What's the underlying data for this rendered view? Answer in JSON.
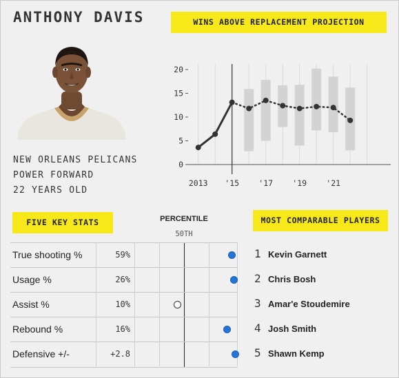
{
  "player": {
    "name": "ANTHONY DAVIS",
    "team": "NEW ORLEANS PELICANS",
    "position": "POWER FORWARD",
    "age": "22 YEARS OLD"
  },
  "war_section": {
    "title": "WINS ABOVE REPLACEMENT PROJECTION"
  },
  "key_stats": {
    "title": "FIVE KEY STATS",
    "percentile_header": "PERCENTILE",
    "median_label": "50TH",
    "rows": [
      {
        "label": "True shooting %",
        "value": "59%",
        "percentile": 95,
        "marker": "filled"
      },
      {
        "label": "Usage %",
        "value": "26%",
        "percentile": 97,
        "marker": "filled"
      },
      {
        "label": "Assist %",
        "value": "10%",
        "percentile": 42,
        "marker": "open"
      },
      {
        "label": "Rebound %",
        "value": "16%",
        "percentile": 90,
        "marker": "filled"
      },
      {
        "label": "Defensive +/-",
        "value": "+2.8",
        "percentile": 98,
        "marker": "filled"
      }
    ]
  },
  "comparable": {
    "title": "MOST COMPARABLE PLAYERS",
    "players": [
      {
        "rank": "1",
        "name": "Kevin Garnett"
      },
      {
        "rank": "2",
        "name": "Chris Bosh"
      },
      {
        "rank": "3",
        "name": "Amar'e Stoudemire"
      },
      {
        "rank": "4",
        "name": "Josh Smith"
      },
      {
        "rank": "5",
        "name": "Shawn Kemp"
      }
    ]
  },
  "colors": {
    "accent": "#f7e81a",
    "dot_blue": "#2574d8",
    "band_gray": "#d3d3d3",
    "line_dark": "#333333"
  },
  "chart_data": {
    "type": "line",
    "title": "WINS ABOVE REPLACEMENT PROJECTION",
    "ylim": [
      0,
      20
    ],
    "yticks": [
      0,
      5,
      10,
      15,
      20
    ],
    "xlim": [
      2012.4,
      2024.4
    ],
    "xticks": [
      {
        "value": 2013,
        "label": "2013"
      },
      {
        "value": 2015,
        "label": "'15"
      },
      {
        "value": 2017,
        "label": "'17"
      },
      {
        "value": 2019,
        "label": "'19"
      },
      {
        "value": 2021,
        "label": "'21"
      }
    ],
    "grid": "vertical",
    "actual": {
      "x": [
        2013,
        2014,
        2015
      ],
      "values": [
        3.6,
        6.4,
        13.1
      ]
    },
    "projection": {
      "x": [
        2015,
        2016,
        2017,
        2018,
        2019,
        2020,
        2021,
        2022
      ],
      "values": [
        13.1,
        11.8,
        13.5,
        12.4,
        11.8,
        12.2,
        12.0,
        9.3
      ]
    },
    "range_bands": [
      {
        "x": 2016,
        "low": 2.8,
        "high": 15.9
      },
      {
        "x": 2017,
        "low": 5.0,
        "high": 17.8
      },
      {
        "x": 2018,
        "low": 7.9,
        "high": 16.7
      },
      {
        "x": 2019,
        "low": 4.0,
        "high": 16.8
      },
      {
        "x": 2020,
        "low": 7.2,
        "high": 20.2
      },
      {
        "x": 2021,
        "low": 6.8,
        "high": 18.5
      },
      {
        "x": 2022,
        "low": 3.0,
        "high": 16.2
      }
    ],
    "divider_x": 2015
  }
}
